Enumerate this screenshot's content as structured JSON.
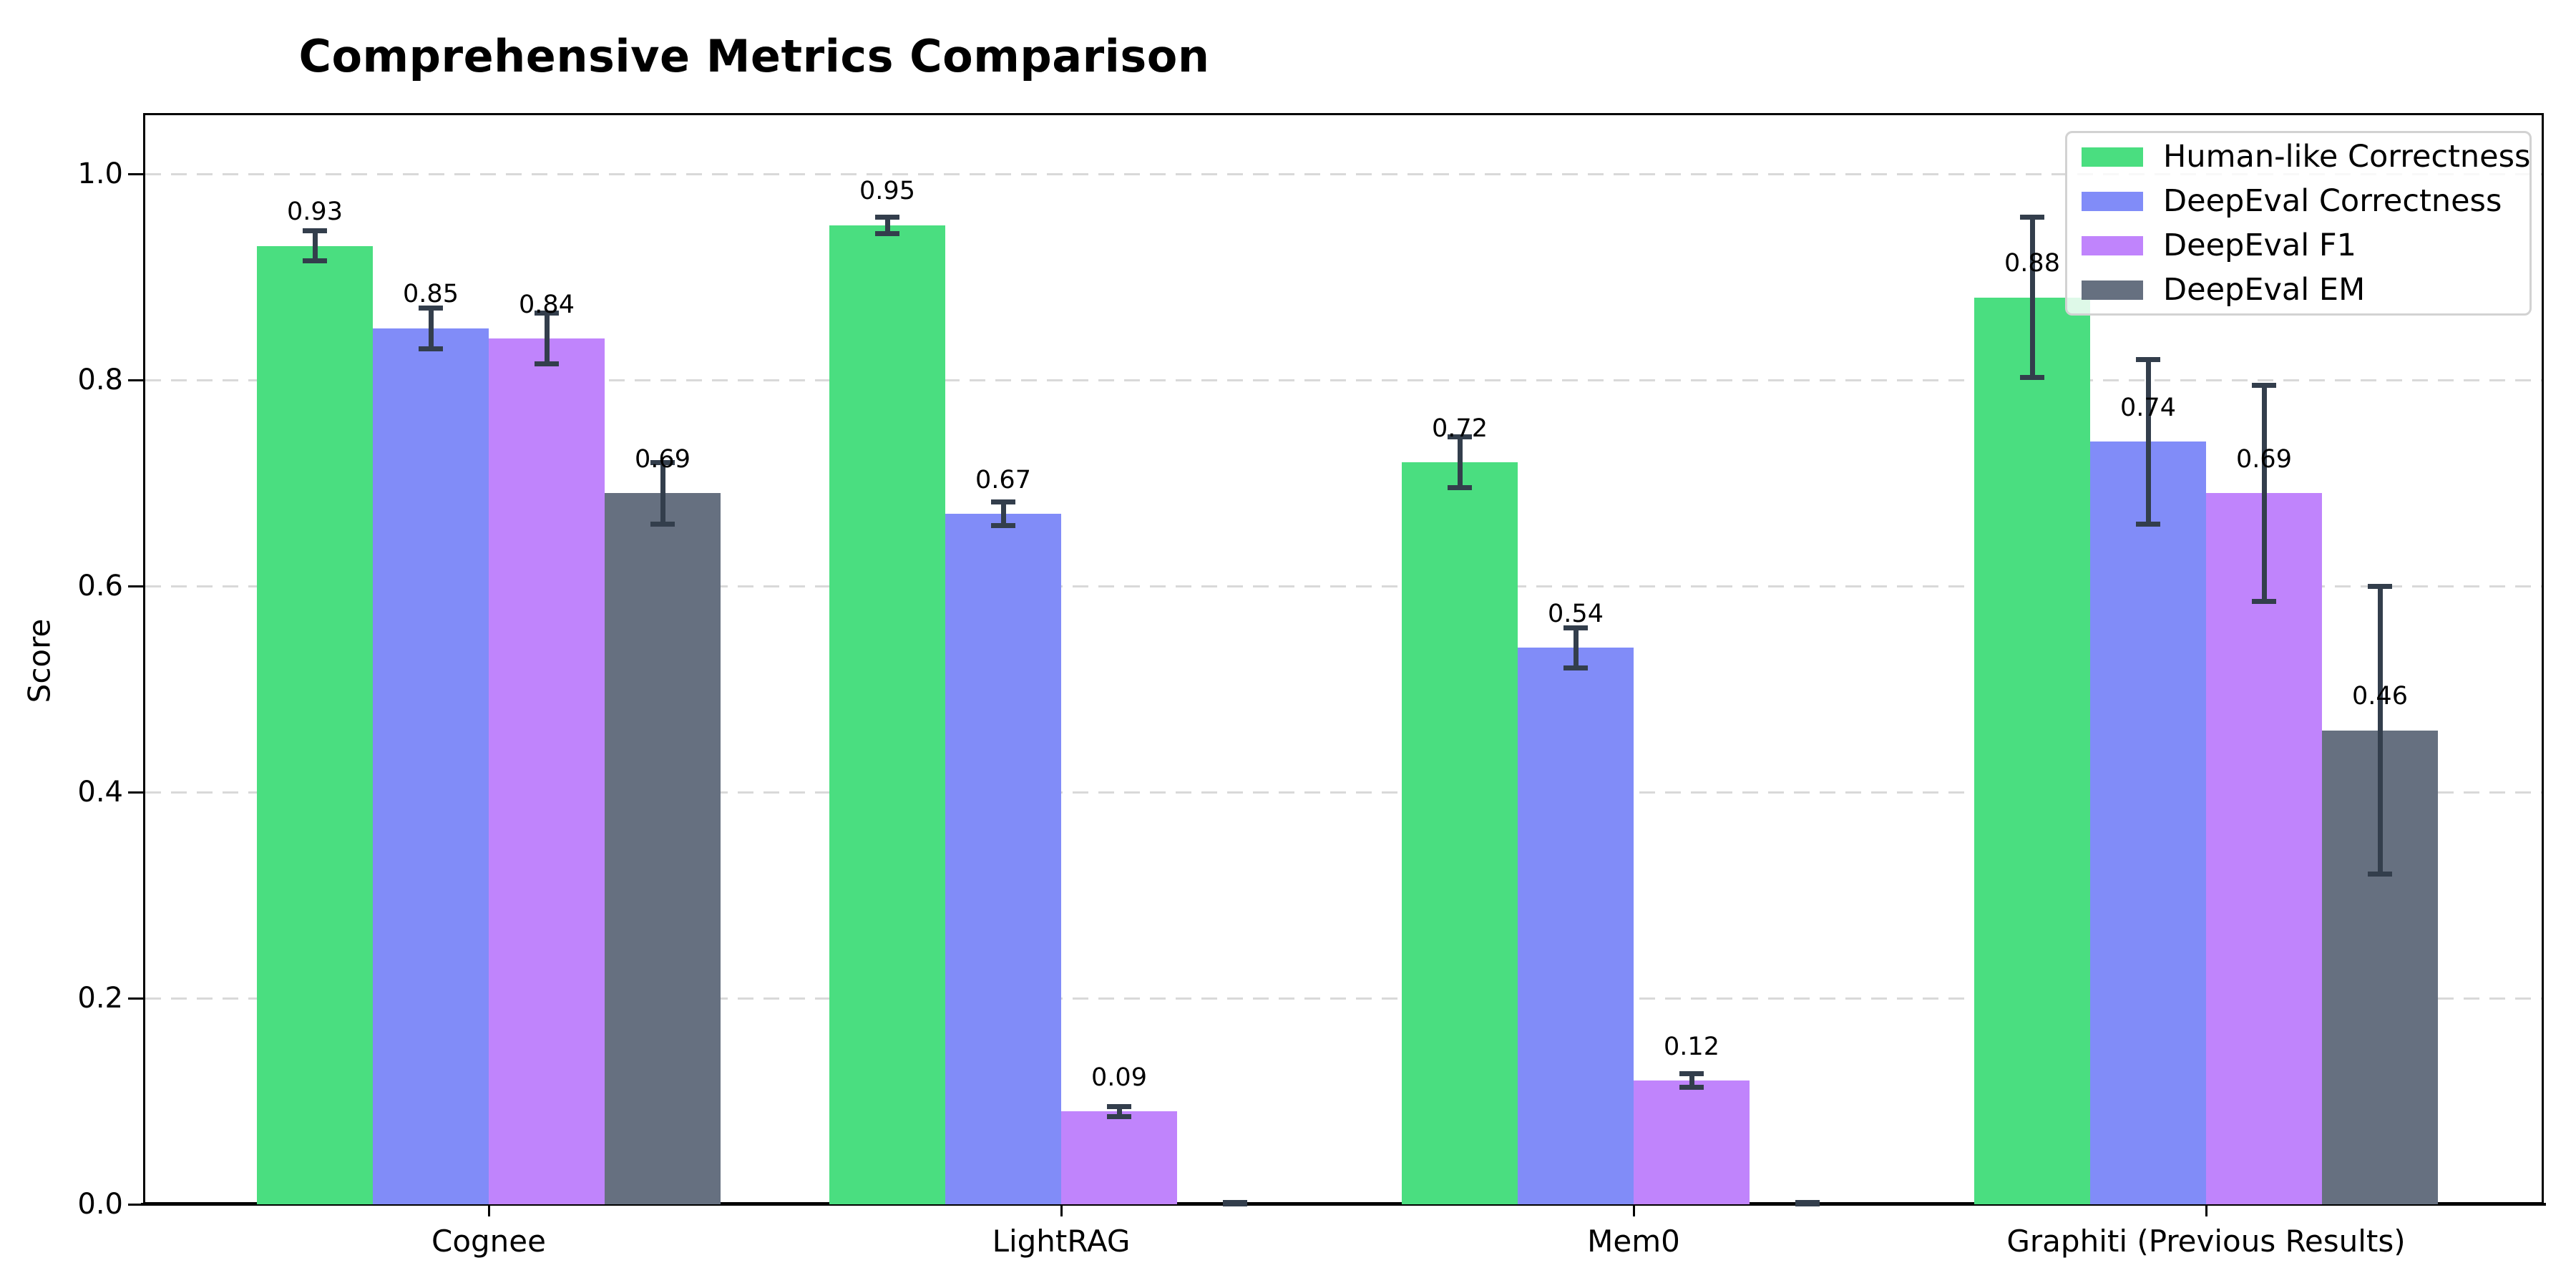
{
  "chart_data": {
    "type": "bar",
    "title": "Comprehensive Metrics Comparison",
    "ylabel": "Score",
    "xlabel": "",
    "categories": [
      "Cognee",
      "LightRAG",
      "Mem0",
      "Graphiti (Previous Results)"
    ],
    "series": [
      {
        "name": "Human-like Correctness",
        "color": "#4ade80",
        "values": [
          0.93,
          0.95,
          0.72,
          0.88
        ],
        "errors": [
          0.015,
          0.008,
          0.025,
          0.078
        ],
        "labels": [
          "0.93",
          "0.95",
          "0.72",
          "0.88"
        ]
      },
      {
        "name": "DeepEval Correctness",
        "color": "#818cf8",
        "values": [
          0.85,
          0.67,
          0.54,
          0.74
        ],
        "errors": [
          0.02,
          0.012,
          0.02,
          0.08
        ],
        "labels": [
          "0.85",
          "0.67",
          "0.54",
          "0.74"
        ]
      },
      {
        "name": "DeepEval F1",
        "color": "#c084fc",
        "values": [
          0.84,
          0.09,
          0.12,
          0.69
        ],
        "errors": [
          0.025,
          0.005,
          0.007,
          0.105
        ],
        "labels": [
          "0.84",
          "0.09",
          "0.12",
          "0.69"
        ]
      },
      {
        "name": "DeepEval EM",
        "color": "#667080",
        "values": [
          0.69,
          0.0,
          0.0,
          0.46
        ],
        "errors": [
          0.03,
          0.002,
          0.002,
          0.14
        ],
        "labels": [
          "0.69",
          null,
          null,
          "0.46"
        ]
      }
    ],
    "ylim": [
      0,
      1.06
    ],
    "yticks": [
      "0.0",
      "0.2",
      "0.4",
      "0.6",
      "0.8",
      "1.0"
    ],
    "grid": "horizontal-dashed",
    "legend_position": "upper-right",
    "error_bar_color": "#333e4c",
    "background_color": "#ffffff"
  }
}
